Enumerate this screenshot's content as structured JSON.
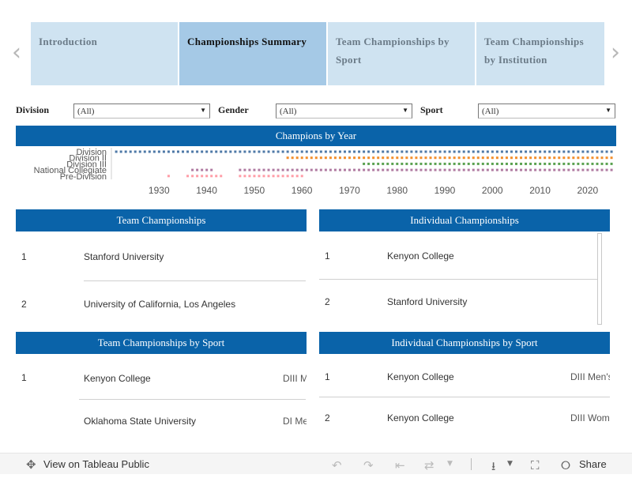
{
  "story": {
    "tabs": [
      {
        "label": "Introduction",
        "active": false
      },
      {
        "label": "Championships Summary",
        "active": true
      },
      {
        "label": "Team Championships by Sport",
        "active": false
      },
      {
        "label": "Team Championships by Institution",
        "active": false
      }
    ],
    "prev_icon": "chevron-left-icon",
    "next_icon": "chevron-right-icon"
  },
  "filters": [
    {
      "label": "Division",
      "value": "(All)"
    },
    {
      "label": "Gender",
      "value": "(All)"
    },
    {
      "label": "Sport",
      "value": "(All)"
    }
  ],
  "champions_by_year": {
    "title": "Champions by Year",
    "chart_data": {
      "type": "scatter",
      "title": "Champions by Year",
      "categories": [
        "Division I",
        "Division II",
        "Division III",
        "National Collegiate",
        "Pre-Division"
      ],
      "category_labels": [
        "Division",
        "Division II",
        "Division III",
        "National Collegiate",
        "Pre-Division"
      ],
      "x_ticks": [
        1930,
        1940,
        1950,
        1960,
        1970,
        1980,
        1990,
        2000,
        2010,
        2020
      ],
      "xlim": [
        1920,
        2026
      ],
      "series": [
        {
          "category": "Division I",
          "ranges": [
            [
              1921,
              1924
            ],
            [
              1925,
              2025
            ]
          ],
          "color": "#4e79a7"
        },
        {
          "category": "Division II",
          "ranges": [
            [
              1957,
              2025
            ]
          ],
          "color": "#f28e2b"
        },
        {
          "category": "Division III",
          "ranges": [
            [
              1973,
              2025
            ]
          ],
          "color": "#59a14f"
        },
        {
          "category": "National Collegiate",
          "ranges": [
            [
              1937,
              1941
            ],
            [
              1947,
              2025
            ]
          ],
          "color": "#b07aa1"
        },
        {
          "category": "Pre-Division",
          "ranges": [
            [
              1932,
              1932
            ],
            [
              1936,
              1943
            ],
            [
              1947,
              1960
            ]
          ],
          "color": "#ff9da7"
        }
      ]
    }
  },
  "team_championships": {
    "title": "Team Championships",
    "rows": [
      {
        "rank": "1",
        "name": "Stanford University"
      },
      {
        "rank": "2",
        "name": "University of California, Los Angeles"
      }
    ]
  },
  "individual_championships": {
    "title": "Individual Championships",
    "rows": [
      {
        "rank": "1",
        "name": "Kenyon College"
      },
      {
        "rank": "2",
        "name": "Stanford University"
      }
    ]
  },
  "team_by_sport": {
    "title": "Team Championships by Sport",
    "rows": [
      {
        "rank": "1",
        "name": "Kenyon College",
        "sport": "DIII M"
      },
      {
        "rank": "",
        "name": "Oklahoma State University",
        "sport": "DI Me"
      }
    ]
  },
  "individual_by_sport": {
    "title": "Individual Championships by Sport",
    "rows": [
      {
        "rank": "1",
        "name": "Kenyon College",
        "sport": "DIII Men's"
      },
      {
        "rank": "2",
        "name": "Kenyon College",
        "sport": "DIII Wom"
      }
    ]
  },
  "toolbar": {
    "view_label": "View on Tableau Public",
    "share_label": "Share",
    "icons": [
      "tableau-logo-icon",
      "undo-icon",
      "redo-icon",
      "revert-icon",
      "refresh-icon",
      "download-icon",
      "fullscreen-icon",
      "share-icon"
    ]
  }
}
